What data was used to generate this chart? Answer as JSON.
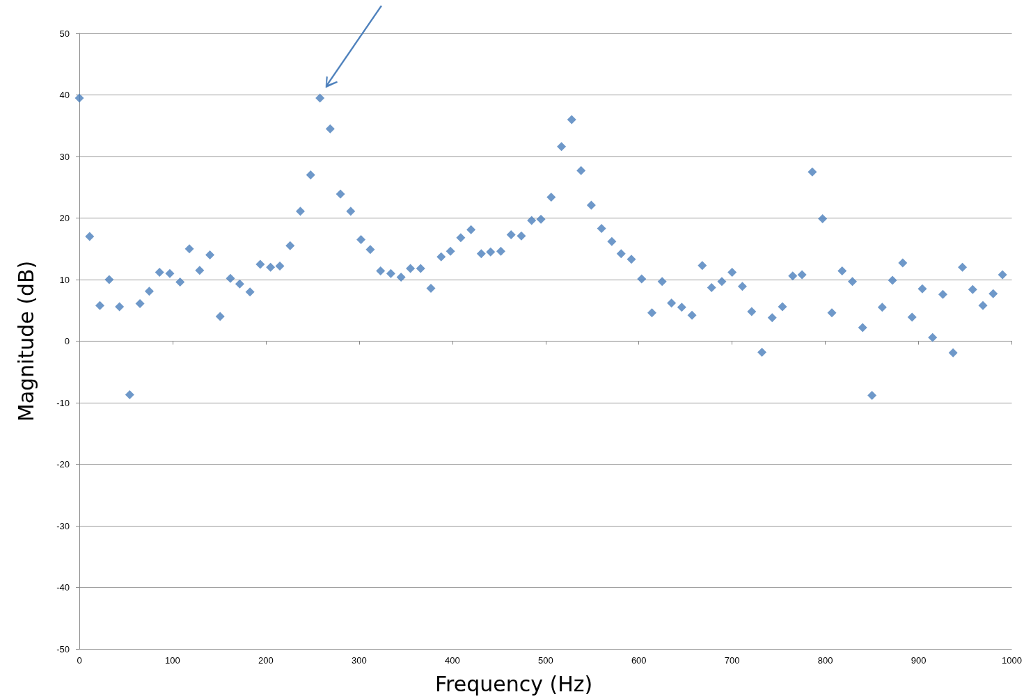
{
  "chart_data": {
    "type": "scatter",
    "xlabel": "Frequency (Hz)",
    "ylabel": "Magnitude (dB)",
    "x": [
      0,
      11,
      22,
      32,
      43,
      54,
      65,
      75,
      86,
      97,
      108,
      118,
      129,
      140,
      151,
      162,
      172,
      183,
      194,
      205,
      215,
      226,
      237,
      248,
      258,
      269,
      280,
      291,
      302,
      312,
      323,
      334,
      345,
      355,
      366,
      377,
      388,
      398,
      409,
      420,
      431,
      441,
      452,
      463,
      474,
      485,
      495,
      506,
      517,
      528,
      538,
      549,
      560,
      571,
      581,
      592,
      603,
      614,
      625,
      635,
      646,
      657,
      668,
      678,
      689,
      700,
      711,
      721,
      732,
      743,
      754,
      765,
      775,
      786,
      797,
      807,
      818,
      829,
      840,
      850,
      861,
      872,
      883,
      893,
      904,
      915,
      926,
      937,
      947,
      958,
      969,
      980,
      990
    ],
    "series": [
      {
        "color": "#4a7ebb",
        "values": [
          39.5,
          17,
          5.8,
          10,
          5.6,
          -8.7,
          6.1,
          8.1,
          11.2,
          11,
          9.6,
          15,
          11.5,
          14,
          4,
          10.2,
          9.3,
          8,
          12.5,
          12,
          12.2,
          15.5,
          21.1,
          27,
          39.5,
          34.5,
          23.9,
          21.1,
          16.5,
          14.9,
          11.4,
          11,
          10.4,
          11.8,
          11.8,
          8.6,
          13.7,
          14.6,
          16.8,
          18.1,
          14.2,
          14.5,
          14.6,
          17.3,
          17.1,
          19.6,
          19.8,
          23.4,
          31.6,
          36,
          27.7,
          22.1,
          18.3,
          16.2,
          14.2,
          13.3,
          10.1,
          4.6,
          9.7,
          6.2,
          5.5,
          4.2,
          12.3,
          8.7,
          9.7,
          11.2,
          8.9,
          4.8,
          -1.8,
          3.8,
          5.6,
          10.6,
          10.8,
          27.5,
          19.9,
          4.6,
          11.4,
          9.7,
          2.2,
          -8.8,
          5.5,
          9.9,
          12.7,
          3.9,
          8.5,
          0.6,
          7.6,
          -1.9,
          12,
          8.4,
          5.8,
          7.7,
          10.8
        ]
      }
    ],
    "xlim": [
      0,
      1000
    ],
    "xticks": [
      0,
      100,
      200,
      300,
      400,
      500,
      600,
      700,
      800,
      900,
      1000
    ],
    "ylim": [
      -50,
      50
    ],
    "yticks": [
      -50,
      -40,
      -30,
      -20,
      -10,
      0,
      10,
      20,
      30,
      40,
      50
    ],
    "grid": "y",
    "marker": "diamond"
  }
}
